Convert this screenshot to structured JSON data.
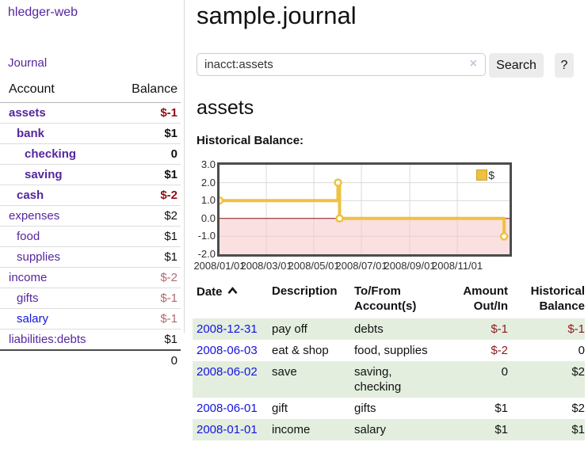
{
  "app_title": "hledger-web",
  "colors": {
    "link_purple": "#55269e",
    "link_blue": "#1414e0",
    "negative_strong": "#8e1016",
    "negative_muted": "#b3696e",
    "row_green": "#e3eedf",
    "accent_gold": "#edc240",
    "negative_band_pink": "#f7c6c9",
    "zero_line_red": "#8b1a1a"
  },
  "sidebar": {
    "journal_link": "Journal",
    "accounts": {
      "col_account": "Account",
      "col_balance": "Balance",
      "rows": [
        {
          "name": "assets",
          "balance": "$-1",
          "indent": 1,
          "bold": true,
          "neg": "strong",
          "link": "purple"
        },
        {
          "name": "bank",
          "balance": "$1",
          "indent": 2,
          "bold": true,
          "neg": "",
          "link": "purple"
        },
        {
          "name": "checking",
          "balance": "0",
          "indent": 3,
          "bold": true,
          "neg": "",
          "link": "purple"
        },
        {
          "name": "saving",
          "balance": "$1",
          "indent": 3,
          "bold": true,
          "neg": "",
          "link": "purple"
        },
        {
          "name": "cash",
          "balance": "$-2",
          "indent": 2,
          "bold": true,
          "neg": "strong",
          "link": "purple"
        },
        {
          "name": "expenses",
          "balance": "$2",
          "indent": 1,
          "bold": false,
          "neg": "",
          "link": "purple"
        },
        {
          "name": "food",
          "balance": "$1",
          "indent": 2,
          "bold": false,
          "neg": "",
          "link": "purple"
        },
        {
          "name": "supplies",
          "balance": "$1",
          "indent": 2,
          "bold": false,
          "neg": "",
          "link": "purple"
        },
        {
          "name": "income",
          "balance": "$-2",
          "indent": 1,
          "bold": false,
          "neg": "muted",
          "link": "purple"
        },
        {
          "name": "gifts",
          "balance": "$-1",
          "indent": 2,
          "bold": false,
          "neg": "muted",
          "link": "purple"
        },
        {
          "name": "salary",
          "balance": "$-1",
          "indent": 2,
          "bold": false,
          "neg": "muted",
          "link": "blue"
        },
        {
          "name": "liabilities:debts",
          "balance": "$1",
          "indent": 1,
          "bold": false,
          "neg": "",
          "link": "purple"
        }
      ],
      "total": "0"
    }
  },
  "main": {
    "title": "sample.journal",
    "search": {
      "query": "inacct:assets",
      "clear_icon": "×",
      "search_button": "Search",
      "help_button": "?"
    },
    "account_heading": "assets",
    "chart_label": "Historical Balance:"
  },
  "chart_data": {
    "type": "line",
    "step": true,
    "title": "Historical Balance:",
    "legend": {
      "label": "$",
      "position": "top-right"
    },
    "series": [
      {
        "name": "$",
        "color": "#edc240",
        "points": [
          [
            "2008-01-01",
            1.0
          ],
          [
            "2008-06-01",
            2.0
          ],
          [
            "2008-06-03",
            0.0
          ],
          [
            "2008-12-31",
            -1.0
          ]
        ]
      }
    ],
    "ylim": [
      -2.0,
      3.0
    ],
    "yticks": [
      3.0,
      2.0,
      1.0,
      0.0,
      -1.0,
      -2.0
    ],
    "xticks": [
      {
        "label": "2008/01/01",
        "date": "2008-01-01"
      },
      {
        "label": "2008/03/01",
        "date": "2008-03-01"
      },
      {
        "label": "2008/05/01",
        "date": "2008-05-01"
      },
      {
        "label": "2008/07/01",
        "date": "2008-07-01"
      },
      {
        "label": "2008/09/01",
        "date": "2008-09-01"
      },
      {
        "label": "2008/11/01",
        "date": "2008-11-01"
      }
    ],
    "x_range": [
      "2008-01-01",
      "2009-01-07"
    ],
    "grid": true,
    "negative_band": {
      "from": 0.0,
      "to": -2.0,
      "color": "#f7c6c9"
    },
    "zero_line_color": "#8b1a1a"
  },
  "register": {
    "headers": {
      "date": "Date",
      "description": "Description",
      "accounts": "To/From\nAccount(s)",
      "amount": "Amount\nOut/In",
      "balance": "Historical\nBalance"
    },
    "rows": [
      {
        "date": "2008-12-31",
        "description": "pay off",
        "accounts": "debts",
        "amount": "$-1",
        "amount_neg": true,
        "balance": "$-1",
        "balance_neg": true,
        "green": true
      },
      {
        "date": "2008-06-03",
        "description": "eat & shop",
        "accounts": "food, supplies",
        "amount": "$-2",
        "amount_neg": true,
        "balance": "0",
        "balance_neg": false,
        "green": false
      },
      {
        "date": "2008-06-02",
        "description": "save",
        "accounts": "saving,\nchecking",
        "amount": "0",
        "amount_neg": false,
        "balance": "$2",
        "balance_neg": false,
        "green": true
      },
      {
        "date": "2008-06-01",
        "description": "gift",
        "accounts": "gifts",
        "amount": "$1",
        "amount_neg": false,
        "balance": "$2",
        "balance_neg": false,
        "green": false
      },
      {
        "date": "2008-01-01",
        "description": "income",
        "accounts": "salary",
        "amount": "$1",
        "amount_neg": false,
        "balance": "$1",
        "balance_neg": false,
        "green": true
      }
    ]
  }
}
